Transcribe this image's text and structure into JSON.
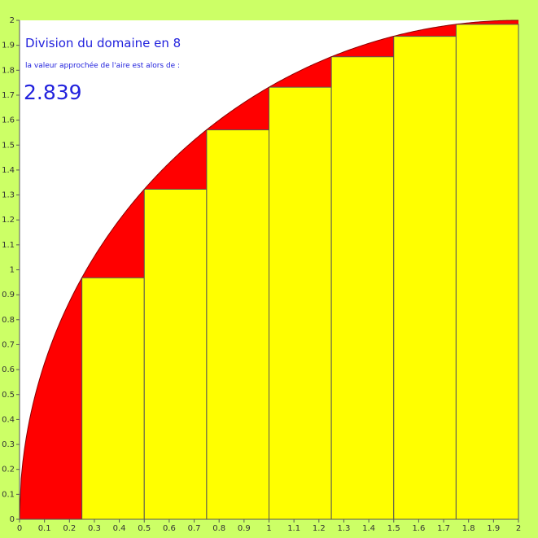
{
  "chart_data": {
    "type": "bar",
    "title": "Division du domaine en 8",
    "subtitle": "la valeur approchée de l'aire est alors de :",
    "result": "2.839",
    "xlim": [
      0,
      2
    ],
    "ylim": [
      0,
      2
    ],
    "x_ticks": [
      "0",
      "0.1",
      "0.2",
      "0.3",
      "0.4",
      "0.5",
      "0.6",
      "0.7",
      "0.8",
      "0.9",
      "1",
      "1.1",
      "1.2",
      "1.3",
      "1.4",
      "1.5",
      "1.6",
      "1.7",
      "1.8",
      "1.9",
      "2"
    ],
    "y_ticks": [
      "0",
      "0.1",
      "0.2",
      "0.3",
      "0.4",
      "0.5",
      "0.6",
      "0.7",
      "0.8",
      "0.9",
      "1",
      "1.1",
      "1.2",
      "1.3",
      "1.4",
      "1.5",
      "1.6",
      "1.7",
      "1.8",
      "1.9",
      "2"
    ],
    "bars": [
      {
        "x0": 0.0,
        "x1": 0.25,
        "height": 0.0
      },
      {
        "x0": 0.25,
        "x1": 0.5,
        "height": 0.968
      },
      {
        "x0": 0.5,
        "x1": 0.75,
        "height": 1.323
      },
      {
        "x0": 0.75,
        "x1": 1.0,
        "height": 1.561
      },
      {
        "x0": 1.0,
        "x1": 1.25,
        "height": 1.732
      },
      {
        "x0": 1.25,
        "x1": 1.5,
        "height": 1.854
      },
      {
        "x0": 1.5,
        "x1": 1.75,
        "height": 1.936
      },
      {
        "x0": 1.75,
        "x1": 2.0,
        "height": 1.984
      }
    ],
    "curve": {
      "function": "sqrt(4 - (x - 2)^2)",
      "domain": [
        0,
        2
      ]
    },
    "colors": {
      "background": "#ccff66",
      "plot_area": "#ffffff",
      "curve_fill": "#ff0000",
      "bar_fill": "#ffff00",
      "bar_stroke": "#555555",
      "text": "#2222dd"
    }
  }
}
